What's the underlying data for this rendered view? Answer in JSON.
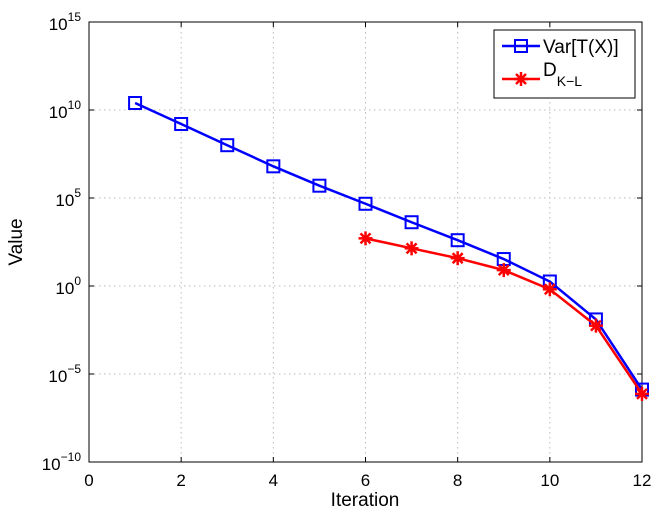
{
  "chart_data": {
    "type": "line",
    "title": "",
    "xlabel": "Iteration",
    "ylabel": "Value",
    "xlim": [
      0,
      12
    ],
    "ylim": [
      1e-10,
      1000000000000000.0
    ],
    "yscale": "log",
    "grid": true,
    "legend_position": "top-right",
    "x_ticks": [
      "0",
      "2",
      "4",
      "6",
      "8",
      "10",
      "12"
    ],
    "y_ticks": [
      {
        "base": "10",
        "exp": "15"
      },
      {
        "base": "10",
        "exp": "10"
      },
      {
        "base": "10",
        "exp": "5"
      },
      {
        "base": "10",
        "exp": "0"
      },
      {
        "base": "10",
        "exp": "−5"
      },
      {
        "base": "10",
        "exp": "−10"
      }
    ],
    "series": [
      {
        "name": "Var[T(X)]",
        "color": "#0000ff",
        "marker": "square",
        "x": [
          1,
          2,
          3,
          4,
          5,
          6,
          7,
          8,
          9,
          10,
          11,
          12
        ],
        "values": [
          25000000000.0,
          1600000000.0,
          100000000.0,
          6300000.0,
          500000.0,
          47000.0,
          4200.0,
          400.0,
          34,
          1.8,
          0.0126,
          1.3e-06
        ]
      },
      {
        "name": "D",
        "subscript": "K−L",
        "color": "#ff0000",
        "marker": "asterisk",
        "x": [
          6,
          7,
          8,
          9,
          10,
          11,
          12
        ],
        "values": [
          510,
          138,
          38,
          8,
          0.65,
          0.0056,
          7.4e-07
        ]
      }
    ]
  }
}
